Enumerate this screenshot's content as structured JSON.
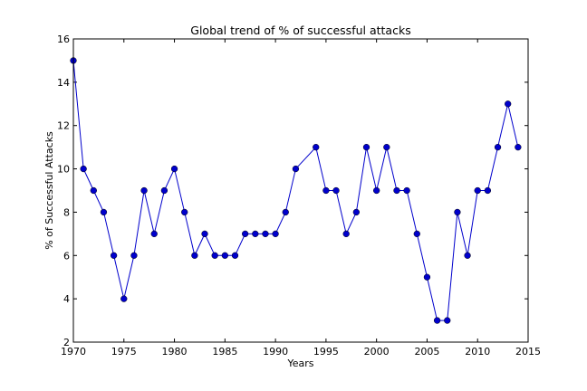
{
  "chart_data": {
    "type": "line",
    "title": "Global trend of % of successful attacks",
    "xlabel": "Years",
    "ylabel": "% of Successful Attacks",
    "xlim": [
      1970,
      2015
    ],
    "ylim": [
      2,
      16
    ],
    "xticks": [
      1970,
      1975,
      1980,
      1985,
      1990,
      1995,
      2000,
      2005,
      2010,
      2015
    ],
    "yticks": [
      2,
      4,
      6,
      8,
      10,
      12,
      14,
      16
    ],
    "grid": false,
    "color": "#0000cc",
    "series": [
      {
        "x": [
          1970,
          1971,
          1972,
          1973,
          1974,
          1975,
          1976,
          1977,
          1978,
          1979,
          1980,
          1981,
          1982,
          1983,
          1984,
          1985,
          1986,
          1987,
          1988,
          1989,
          1990,
          1991,
          1992,
          1994,
          1995,
          1996,
          1997,
          1998,
          1999,
          2000,
          2001,
          2002,
          2003,
          2004,
          2005,
          2006,
          2007,
          2008,
          2009,
          2010,
          2011,
          2012,
          2013,
          2014
        ],
        "y": [
          15,
          10,
          9,
          8,
          6,
          4,
          6,
          9,
          7,
          9,
          10,
          8,
          6,
          7,
          6,
          6,
          6,
          7,
          7,
          7,
          7,
          8,
          10,
          11,
          9,
          9,
          7,
          8,
          11,
          9,
          11,
          9,
          9,
          7,
          5,
          3,
          3,
          8,
          6,
          9,
          9,
          11,
          13,
          11
        ]
      }
    ]
  }
}
